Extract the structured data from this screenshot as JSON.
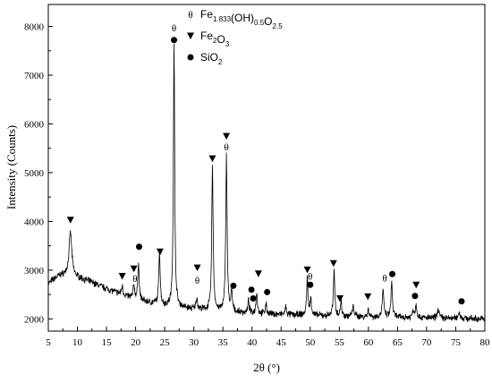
{
  "chart_data": {
    "type": "line",
    "xlabel": "2θ (°)",
    "ylabel": "Intensity (Counts)",
    "xlim": [
      5,
      80
    ],
    "ylim": [
      1750,
      8450
    ],
    "xticks": [
      5,
      10,
      15,
      20,
      25,
      30,
      35,
      40,
      45,
      50,
      55,
      60,
      65,
      70,
      75,
      80
    ],
    "yticks": [
      2000,
      3000,
      4000,
      5000,
      6000,
      7000,
      8000
    ],
    "grid": false,
    "legend_position": "top-center",
    "legend": [
      {
        "symbol": "θ",
        "marker": "theta",
        "name": "Fe1.833(OH)0.5O2.5",
        "parts": [
          [
            "Fe",
            ""
          ],
          [
            "1.833",
            "sub"
          ],
          [
            "(OH)",
            ""
          ],
          [
            "0.5",
            "sub"
          ],
          [
            "O",
            ""
          ],
          [
            "2.5",
            "sub"
          ]
        ]
      },
      {
        "symbol": "▼",
        "marker": "triangle",
        "name": "Fe2O3",
        "parts": [
          [
            "Fe",
            ""
          ],
          [
            "2",
            "sub"
          ],
          [
            "O",
            ""
          ],
          [
            "3",
            "sub"
          ]
        ]
      },
      {
        "symbol": "●",
        "marker": "circle",
        "name": "SiO2",
        "parts": [
          [
            "SiO",
            ""
          ],
          [
            "2",
            "sub"
          ]
        ]
      }
    ],
    "background": [
      [
        5,
        2720
      ],
      [
        6,
        2820
      ],
      [
        7,
        2890
      ],
      [
        8,
        2900
      ],
      [
        10,
        2850
      ],
      [
        12,
        2770
      ],
      [
        15,
        2620
      ],
      [
        18,
        2480
      ],
      [
        21,
        2370
      ],
      [
        25,
        2270
      ],
      [
        30,
        2200
      ],
      [
        35,
        2150
      ],
      [
        40,
        2110
      ],
      [
        50,
        2070
      ],
      [
        60,
        2040
      ],
      [
        70,
        2020
      ],
      [
        80,
        2000
      ]
    ],
    "peaks": [
      {
        "x": 8.8,
        "h": 900,
        "w": 0.28
      },
      {
        "x": 17.7,
        "h": 180,
        "w": 0.15
      },
      {
        "x": 19.7,
        "h": 280,
        "w": 0.15
      },
      {
        "x": 20.5,
        "h": 780,
        "w": 0.13
      },
      {
        "x": 24.1,
        "h": 1100,
        "w": 0.14
      },
      {
        "x": 26.6,
        "h": 5350,
        "w": 0.13
      },
      {
        "x": 30.5,
        "h": 230,
        "w": 0.15
      },
      {
        "x": 33.2,
        "h": 3000,
        "w": 0.14
      },
      {
        "x": 35.6,
        "h": 3200,
        "w": 0.14
      },
      {
        "x": 36.5,
        "h": 400,
        "w": 0.14
      },
      {
        "x": 39.4,
        "h": 250,
        "w": 0.14
      },
      {
        "x": 40.8,
        "h": 450,
        "w": 0.14
      },
      {
        "x": 42.4,
        "h": 200,
        "w": 0.14
      },
      {
        "x": 45.8,
        "h": 150,
        "w": 0.14
      },
      {
        "x": 49.5,
        "h": 750,
        "w": 0.14
      },
      {
        "x": 50.1,
        "h": 350,
        "w": 0.14
      },
      {
        "x": 54.1,
        "h": 900,
        "w": 0.15
      },
      {
        "x": 55.3,
        "h": 300,
        "w": 0.14
      },
      {
        "x": 57.4,
        "h": 200,
        "w": 0.18
      },
      {
        "x": 60.0,
        "h": 150,
        "w": 0.16
      },
      {
        "x": 62.5,
        "h": 550,
        "w": 0.16
      },
      {
        "x": 64.0,
        "h": 700,
        "w": 0.15
      },
      {
        "x": 67.7,
        "h": 150,
        "w": 0.16
      },
      {
        "x": 68.2,
        "h": 250,
        "w": 0.16
      },
      {
        "x": 72.0,
        "h": 200,
        "w": 0.18
      },
      {
        "x": 75.6,
        "h": 130,
        "w": 0.18
      }
    ],
    "annotations": [
      {
        "marker": "theta",
        "x": 26.6,
        "y": 7970
      },
      {
        "marker": "circle",
        "x": 26.6,
        "y": 7720
      },
      {
        "marker": "triangle",
        "x": 35.6,
        "y": 5750
      },
      {
        "marker": "theta",
        "x": 35.6,
        "y": 5530
      },
      {
        "marker": "triangle",
        "x": 33.2,
        "y": 5290
      },
      {
        "marker": "triangle",
        "x": 8.8,
        "y": 4030
      },
      {
        "marker": "circle",
        "x": 20.6,
        "y": 3480
      },
      {
        "marker": "triangle",
        "x": 24.2,
        "y": 3380
      },
      {
        "marker": "triangle",
        "x": 17.7,
        "y": 2880
      },
      {
        "marker": "triangle",
        "x": 19.7,
        "y": 3030
      },
      {
        "marker": "theta",
        "x": 19.9,
        "y": 2830
      },
      {
        "marker": "triangle",
        "x": 30.6,
        "y": 3050
      },
      {
        "marker": "theta",
        "x": 30.6,
        "y": 2800
      },
      {
        "marker": "circle",
        "x": 36.8,
        "y": 2680
      },
      {
        "marker": "triangle",
        "x": 41.1,
        "y": 2930
      },
      {
        "marker": "circle",
        "x": 39.9,
        "y": 2600
      },
      {
        "marker": "circle",
        "x": 40.2,
        "y": 2420
      },
      {
        "marker": "circle",
        "x": 42.6,
        "y": 2550
      },
      {
        "marker": "triangle",
        "x": 49.5,
        "y": 3010
      },
      {
        "marker": "theta",
        "x": 50.0,
        "y": 2880
      },
      {
        "marker": "circle",
        "x": 50.0,
        "y": 2700
      },
      {
        "marker": "triangle",
        "x": 54.0,
        "y": 3140
      },
      {
        "marker": "triangle",
        "x": 55.1,
        "y": 2420
      },
      {
        "marker": "triangle",
        "x": 59.9,
        "y": 2460
      },
      {
        "marker": "theta",
        "x": 62.8,
        "y": 2840
      },
      {
        "marker": "circle",
        "x": 64.1,
        "y": 2920
      },
      {
        "marker": "triangle",
        "x": 68.2,
        "y": 2700
      },
      {
        "marker": "circle",
        "x": 68.0,
        "y": 2470
      },
      {
        "marker": "circle",
        "x": 76.0,
        "y": 2360
      }
    ]
  }
}
